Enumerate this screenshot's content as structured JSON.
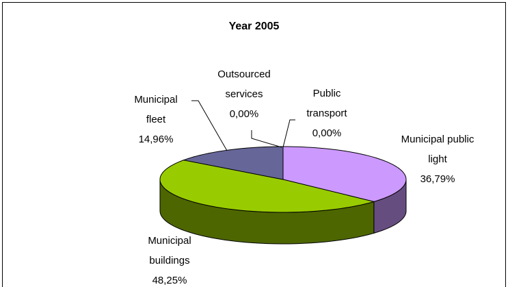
{
  "chart_data": {
    "type": "pie3d",
    "title": "Year 2005",
    "categories": [
      "Municipal public light",
      "Municipal buildings",
      "Municipal fleet",
      "Outsourced services",
      "Public transport"
    ],
    "values": [
      36.79,
      48.25,
      14.96,
      0,
      0
    ],
    "value_labels": [
      "36,79%",
      "48,25%",
      "14,96%",
      "0,00%",
      "0,00%"
    ],
    "colors": [
      "#cc99ff",
      "#99cc00",
      "#666699",
      "#3366ff",
      "#ff9900"
    ]
  }
}
